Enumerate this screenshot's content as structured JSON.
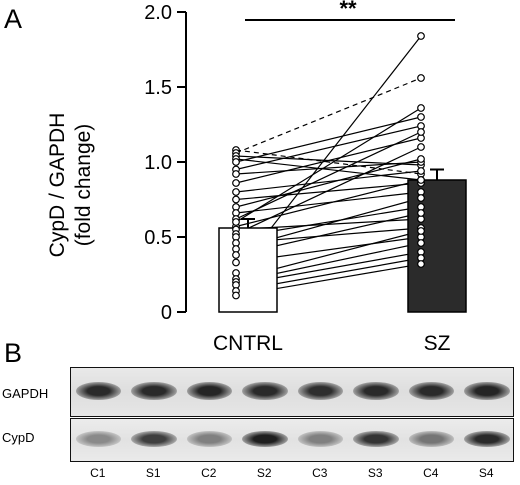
{
  "panels": {
    "a": "A",
    "b": "B"
  },
  "chart_data": {
    "type": "bar",
    "ylabel_lines": [
      "CypD / GAPDH",
      "(fold change)"
    ],
    "ylim": [
      0,
      2.0
    ],
    "yticks": [
      "0",
      "0.5",
      "1.0",
      "1.5",
      "2.0"
    ],
    "categories": [
      "CNTRL",
      "SZ"
    ],
    "values": [
      0.56,
      0.88
    ],
    "errors": [
      0.06,
      0.07
    ],
    "bar_colors": [
      "#ffffff",
      "#2b2b2b"
    ],
    "significance": "**",
    "paired_points": [
      {
        "cntrl": 1.08,
        "sz": 0.92,
        "style": "dashed"
      },
      {
        "cntrl": 1.06,
        "sz": 1.56,
        "style": "dashed"
      },
      {
        "cntrl": 1.04,
        "sz": 0.98,
        "style": "solid"
      },
      {
        "cntrl": 1.02,
        "sz": 0.88,
        "style": "solid"
      },
      {
        "cntrl": 1.0,
        "sz": 1.3,
        "style": "solid"
      },
      {
        "cntrl": 0.95,
        "sz": 1.24,
        "style": "solid"
      },
      {
        "cntrl": 0.92,
        "sz": 1.0,
        "style": "solid"
      },
      {
        "cntrl": 0.86,
        "sz": 1.16,
        "style": "solid"
      },
      {
        "cntrl": 0.8,
        "sz": 0.94,
        "style": "solid"
      },
      {
        "cntrl": 0.75,
        "sz": 0.86,
        "style": "solid"
      },
      {
        "cntrl": 0.7,
        "sz": 1.02,
        "style": "solid"
      },
      {
        "cntrl": 0.66,
        "sz": 0.8,
        "style": "solid"
      },
      {
        "cntrl": 0.62,
        "sz": 1.2,
        "style": "solid"
      },
      {
        "cntrl": 0.57,
        "sz": 0.88,
        "style": "solid"
      },
      {
        "cntrl": 0.55,
        "sz": 0.62,
        "style": "solid"
      },
      {
        "cntrl": 0.52,
        "sz": 1.1,
        "style": "solid"
      },
      {
        "cntrl": 0.5,
        "sz": 0.7,
        "style": "solid"
      },
      {
        "cntrl": 0.46,
        "sz": 0.56,
        "style": "solid"
      },
      {
        "cntrl": 0.42,
        "sz": 0.76,
        "style": "solid"
      },
      {
        "cntrl": 0.38,
        "sz": 0.66,
        "style": "solid"
      },
      {
        "cntrl": 0.33,
        "sz": 0.5,
        "style": "solid"
      },
      {
        "cntrl": 0.26,
        "sz": 1.84,
        "style": "solid"
      },
      {
        "cntrl": 0.22,
        "sz": 0.54,
        "style": "solid"
      },
      {
        "cntrl": 0.2,
        "sz": 0.46,
        "style": "solid"
      },
      {
        "cntrl": 0.18,
        "sz": 0.4,
        "style": "solid"
      },
      {
        "cntrl": 0.14,
        "sz": 0.36,
        "style": "solid"
      },
      {
        "cntrl": 0.11,
        "sz": 0.32,
        "style": "solid"
      },
      {
        "cntrl": 0.6,
        "sz": 1.36,
        "style": "solid"
      }
    ]
  },
  "blot": {
    "rows": [
      "GAPDH",
      "CypD"
    ],
    "lanes": [
      "C1",
      "S1",
      "C2",
      "S2",
      "C3",
      "S3",
      "C4",
      "S4"
    ],
    "gapdh_intensity": [
      0.9,
      0.9,
      0.92,
      0.9,
      0.88,
      0.9,
      0.9,
      0.92
    ],
    "cypd_intensity": [
      0.45,
      0.8,
      0.5,
      0.95,
      0.5,
      0.85,
      0.55,
      0.9
    ]
  }
}
